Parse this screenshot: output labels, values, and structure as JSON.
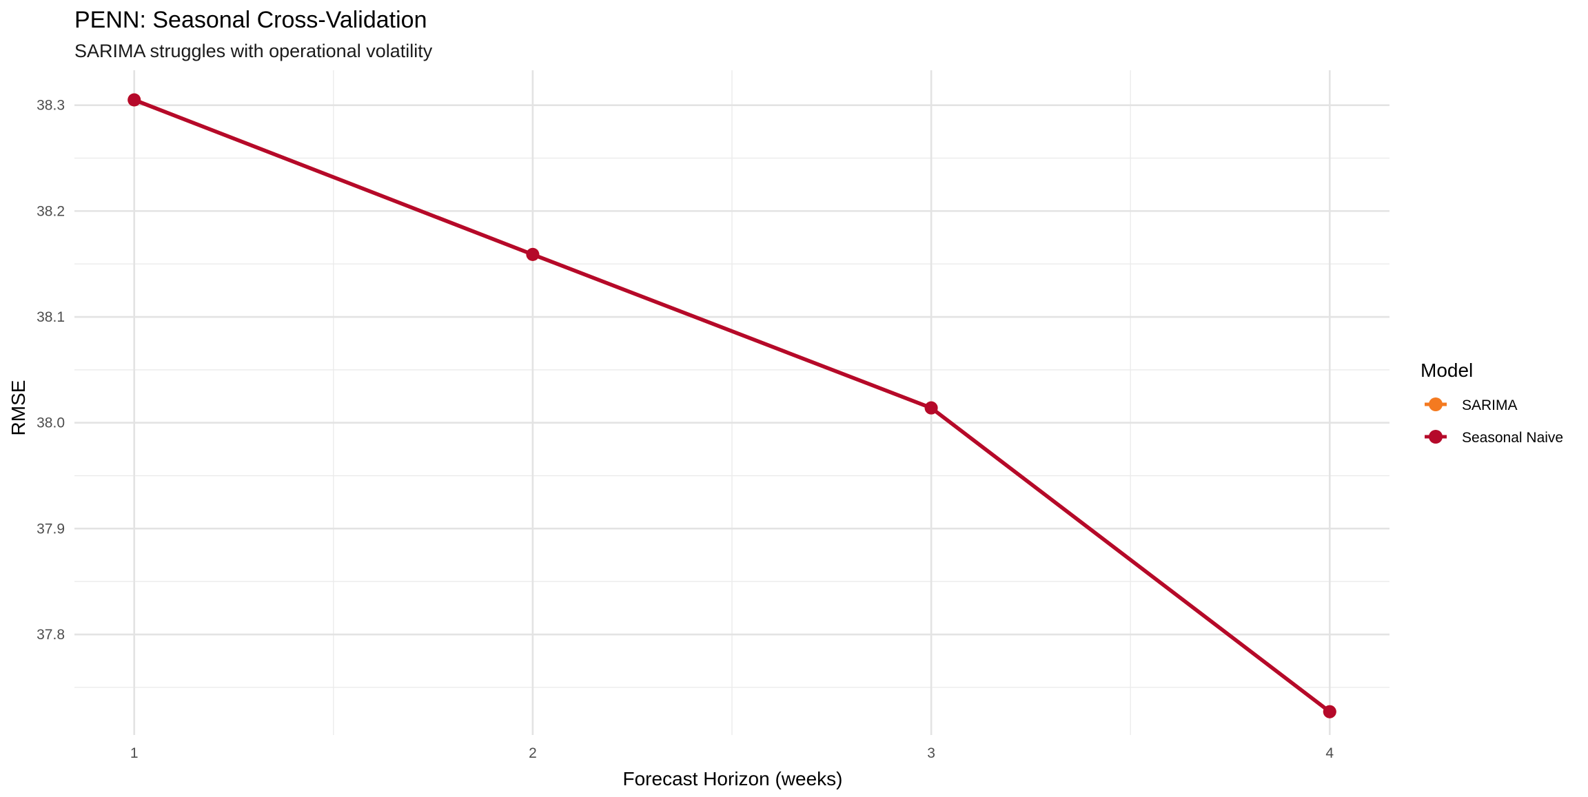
{
  "chart_data": {
    "type": "line",
    "title": "PENN: Seasonal Cross-Validation",
    "subtitle": "SARIMA struggles with operational volatility",
    "xlabel": "Forecast Horizon (weeks)",
    "ylabel": "RMSE",
    "x": [
      1,
      2,
      3,
      4
    ],
    "x_tick_labels": [
      "1",
      "2",
      "3",
      "4"
    ],
    "y_tick_labels": [
      "37.8",
      "37.9",
      "38.0",
      "38.1",
      "38.2",
      "38.3"
    ],
    "y_ticks": [
      37.8,
      37.9,
      38.0,
      38.1,
      38.2,
      38.3
    ],
    "xlim": [
      0.85,
      4.15
    ],
    "ylim": [
      37.705,
      38.333
    ],
    "grid": true,
    "legend": {
      "title": "Model",
      "position": "right",
      "entries": [
        {
          "name": "SARIMA",
          "color": "#F47A20"
        },
        {
          "name": "Seasonal Naive",
          "color": "#B5092A"
        }
      ]
    },
    "series": [
      {
        "name": "SARIMA",
        "color": "#F47A20",
        "values": [
          38.305,
          38.159,
          38.014,
          37.727
        ]
      },
      {
        "name": "Seasonal Naive",
        "color": "#B5092A",
        "values": [
          38.305,
          38.159,
          38.014,
          37.727
        ]
      }
    ]
  }
}
